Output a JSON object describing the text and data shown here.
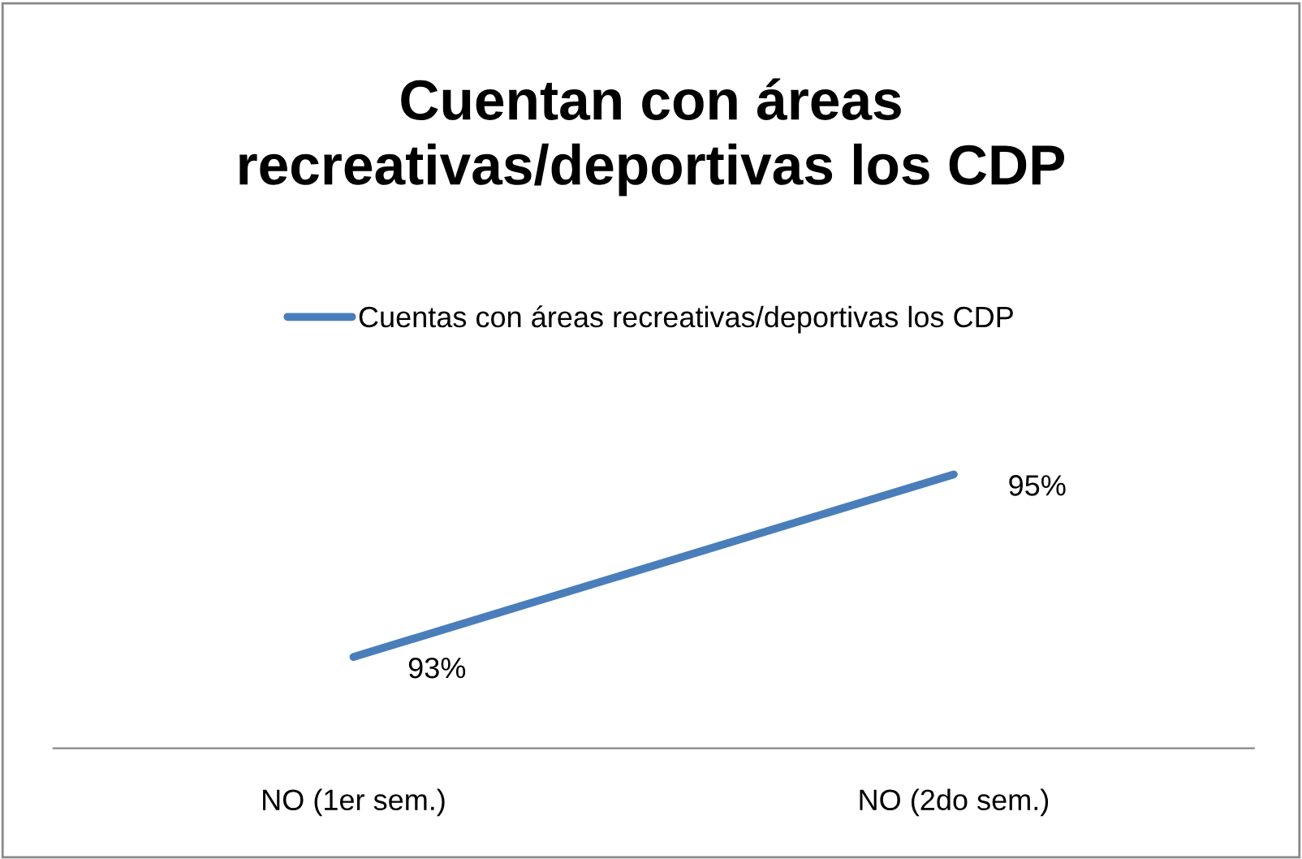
{
  "chart_data": {
    "type": "line",
    "title": "Cuentan con áreas recreativas/deportivas los CDP",
    "categories": [
      "NO (1er sem.)",
      "NO (2do sem.)"
    ],
    "series": [
      {
        "name": "Cuentas con áreas recreativas/deportivas los CDP",
        "color": "#4a7ebb",
        "values": [
          93,
          95
        ],
        "value_labels": [
          "93%",
          "95%"
        ]
      }
    ],
    "tick_labels": "x",
    "grid": false,
    "legend": "top",
    "marker": "none",
    "line_style": "solid"
  }
}
